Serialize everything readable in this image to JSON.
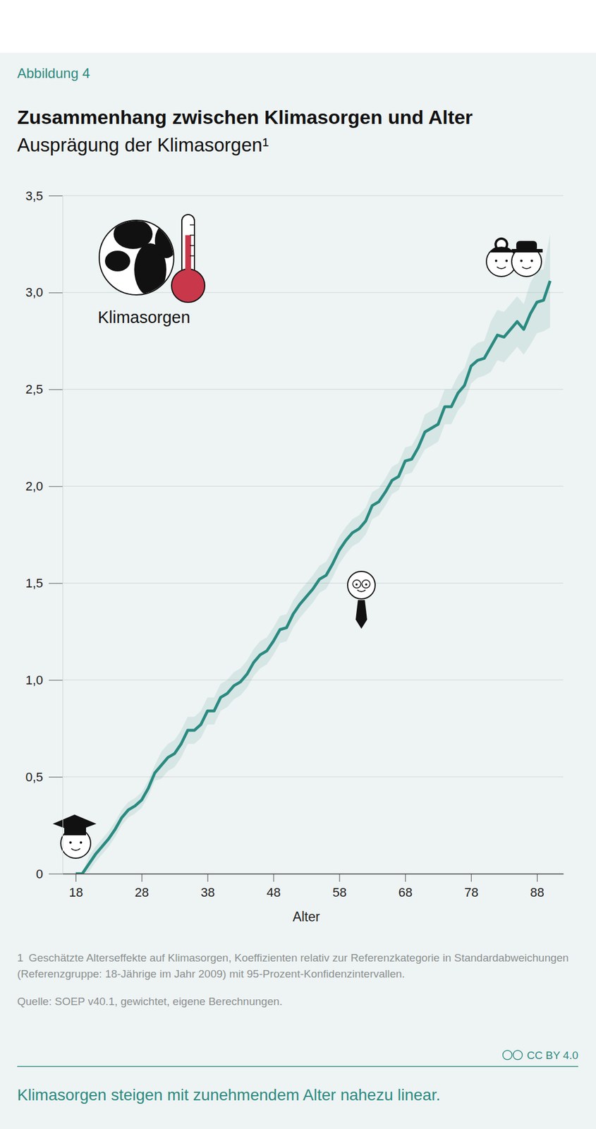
{
  "chart_data": {
    "type": "line",
    "figure_label": "Abbildung 4",
    "title": "Zusammenhang zwischen Klimasorgen und Alter",
    "subtitle": "Ausprägung der Klimasorgen¹",
    "annotation": "Klimasorgen",
    "x_label": "Alter",
    "x": [
      18,
      19,
      20,
      21,
      22,
      23,
      24,
      25,
      26,
      27,
      28,
      29,
      30,
      31,
      32,
      33,
      34,
      35,
      36,
      37,
      38,
      39,
      40,
      41,
      42,
      43,
      44,
      45,
      46,
      47,
      48,
      49,
      50,
      51,
      52,
      53,
      54,
      55,
      56,
      57,
      58,
      59,
      60,
      61,
      62,
      63,
      64,
      65,
      66,
      67,
      68,
      69,
      70,
      71,
      72,
      73,
      74,
      75,
      76,
      77,
      78,
      79,
      80,
      81,
      82,
      83,
      84,
      85,
      86,
      87,
      88,
      89,
      90
    ],
    "series": [
      {
        "color": "#2a8a80",
        "values": [
          0,
          0,
          0.05,
          0.1,
          0.14,
          0.18,
          0.23,
          0.29,
          0.33,
          0.35,
          0.38,
          0.44,
          0.52,
          0.56,
          0.6,
          0.62,
          0.67,
          0.74,
          0.74,
          0.77,
          0.84,
          0.84,
          0.91,
          0.93,
          0.97,
          0.99,
          1.03,
          1.09,
          1.13,
          1.15,
          1.2,
          1.26,
          1.27,
          1.34,
          1.39,
          1.43,
          1.47,
          1.52,
          1.54,
          1.6,
          1.67,
          1.72,
          1.76,
          1.78,
          1.82,
          1.9,
          1.92,
          1.97,
          2.03,
          2.05,
          2.13,
          2.14,
          2.2,
          2.28,
          2.3,
          2.32,
          2.41,
          2.41,
          2.48,
          2.52,
          2.62,
          2.65,
          2.66,
          2.72,
          2.78,
          2.77,
          2.81,
          2.85,
          2.81,
          2.89,
          2.95,
          2.96,
          3.06
        ],
        "lower": [
          0,
          0,
          0.01,
          0.06,
          0.1,
          0.14,
          0.19,
          0.25,
          0.29,
          0.31,
          0.34,
          0.4,
          0.48,
          0.49,
          0.53,
          0.55,
          0.6,
          0.67,
          0.67,
          0.7,
          0.77,
          0.77,
          0.84,
          0.86,
          0.9,
          0.92,
          0.96,
          1.02,
          1.06,
          1.08,
          1.13,
          1.19,
          1.2,
          1.27,
          1.32,
          1.36,
          1.4,
          1.45,
          1.47,
          1.53,
          1.6,
          1.65,
          1.69,
          1.71,
          1.75,
          1.83,
          1.85,
          1.9,
          1.96,
          1.98,
          2.06,
          2.07,
          2.13,
          2.19,
          2.21,
          2.23,
          2.32,
          2.32,
          2.39,
          2.43,
          2.53,
          2.56,
          2.57,
          2.59,
          2.65,
          2.64,
          2.68,
          2.72,
          2.68,
          2.73,
          2.79,
          2.8,
          2.82
        ],
        "upper": [
          0,
          0,
          0.09,
          0.14,
          0.18,
          0.22,
          0.27,
          0.33,
          0.37,
          0.39,
          0.42,
          0.48,
          0.56,
          0.63,
          0.67,
          0.69,
          0.74,
          0.81,
          0.81,
          0.84,
          0.91,
          0.91,
          0.98,
          1.0,
          1.04,
          1.06,
          1.1,
          1.16,
          1.2,
          1.22,
          1.27,
          1.33,
          1.34,
          1.41,
          1.46,
          1.5,
          1.54,
          1.59,
          1.61,
          1.67,
          1.74,
          1.79,
          1.83,
          1.85,
          1.89,
          1.97,
          1.99,
          2.04,
          2.1,
          2.12,
          2.2,
          2.21,
          2.27,
          2.37,
          2.39,
          2.41,
          2.5,
          2.5,
          2.57,
          2.61,
          2.71,
          2.74,
          2.75,
          2.85,
          2.91,
          2.9,
          2.94,
          2.98,
          2.94,
          3.05,
          3.11,
          3.12,
          3.3
        ]
      }
    ],
    "xlim": [
      16,
      92
    ],
    "xticks": [
      18,
      28,
      38,
      48,
      58,
      68,
      78,
      88
    ],
    "ylim": [
      0,
      3.5
    ],
    "yticks": [
      0,
      {
        "value": 0.5,
        "label": "0,5"
      },
      {
        "value": 1,
        "label": "1,0"
      },
      {
        "value": 1.5,
        "label": "1,5"
      },
      {
        "value": 2,
        "label": "2,0"
      },
      {
        "value": 2.5,
        "label": "2,5"
      },
      {
        "value": 3,
        "label": "3,0"
      },
      {
        "value": 3.5,
        "label": "3,5"
      }
    ],
    "grid": true,
    "footnote": {
      "marker": "1",
      "text": "Geschätzte Alterseffekte auf Klimasorgen, Koeffizienten relativ zur Referenzkategorie in Standardabweichungen (Referenzgruppe: 18-Jährige im Jahr 2009) mit 95-Prozent-Konfidenzintervallen."
    },
    "source": "Quelle: SOEP v40.1, gewichtet, eigene Berechnungen.",
    "license": "CC BY 4.0",
    "caption": "Klimasorgen steigen mit zunehmendem Alter nahezu linear."
  }
}
